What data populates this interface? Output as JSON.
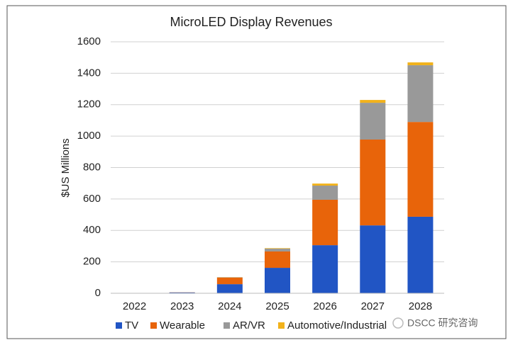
{
  "chart_data": {
    "type": "stacked_bar",
    "title": "MicroLED Display Revenues",
    "y_label": "$US  Millions",
    "categories": [
      "2022",
      "2023",
      "2024",
      "2025",
      "2026",
      "2027",
      "2028"
    ],
    "series": [
      {
        "name": "TV",
        "color": "#2155c4",
        "values": [
          0,
          5,
          58,
          162,
          306,
          432,
          487
        ]
      },
      {
        "name": "Wearable",
        "color": "#e8640a",
        "values": [
          0,
          1,
          42,
          104,
          289,
          546,
          603
        ]
      },
      {
        "name": "AR/VR",
        "color": "#999999",
        "values": [
          0,
          1,
          2,
          18,
          90,
          234,
          361
        ]
      },
      {
        "name": "Automotive/Industrial",
        "color": "#f2b21b",
        "values": [
          0,
          0,
          1,
          3,
          13,
          18,
          18
        ]
      }
    ],
    "ylim": [
      0,
      1600
    ],
    "yticks": [
      0,
      200,
      400,
      600,
      800,
      1000,
      1200,
      1400,
      1600
    ],
    "grid": true
  },
  "watermark": "DSCC 研究咨询"
}
